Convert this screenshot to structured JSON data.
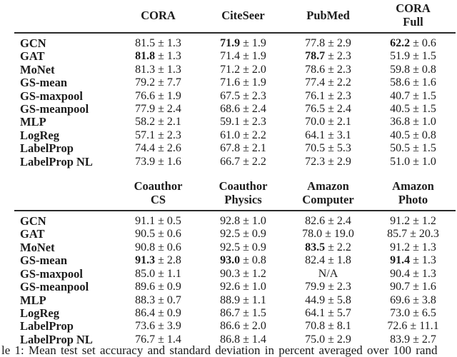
{
  "page": {
    "background": "#ffffff",
    "text_color": "#1c1c1c",
    "rule_color": "#2a2a2a"
  },
  "caption": {
    "text": "le 1:  Mean test set accuracy and standard deviation in percent averaged over 100 rand"
  },
  "sections": [
    {
      "headers": [
        "CORA",
        "CiteSeer",
        "PubMed",
        "CORA\nFull"
      ],
      "rows": [
        {
          "label": "GCN",
          "cells": [
            {
              "v": "81.5",
              "pm": "± 1.3",
              "b": false
            },
            {
              "v": "71.9",
              "pm": "± 1.9",
              "b": true
            },
            {
              "v": "77.8",
              "pm": "± 2.9",
              "b": false
            },
            {
              "v": "62.2",
              "pm": "± 0.6",
              "b": true
            }
          ]
        },
        {
          "label": "GAT",
          "cells": [
            {
              "v": "81.8",
              "pm": "± 1.3",
              "b": true
            },
            {
              "v": "71.4",
              "pm": "± 1.9",
              "b": false
            },
            {
              "v": "78.7",
              "pm": "± 2.3",
              "b": true
            },
            {
              "v": "51.9",
              "pm": "± 1.5",
              "b": false
            }
          ]
        },
        {
          "label": "MoNet",
          "cells": [
            {
              "v": "81.3",
              "pm": "± 1.3",
              "b": false
            },
            {
              "v": "71.2",
              "pm": "± 2.0",
              "b": false
            },
            {
              "v": "78.6",
              "pm": "± 2.3",
              "b": false
            },
            {
              "v": "59.8",
              "pm": "± 0.8",
              "b": false
            }
          ]
        },
        {
          "label": "GS-mean",
          "cells": [
            {
              "v": "79.2",
              "pm": "± 7.7",
              "b": false
            },
            {
              "v": "71.6",
              "pm": "± 1.9",
              "b": false
            },
            {
              "v": "77.4",
              "pm": "± 2.2",
              "b": false
            },
            {
              "v": "58.6",
              "pm": "± 1.6",
              "b": false
            }
          ]
        },
        {
          "label": "GS-maxpool",
          "cells": [
            {
              "v": "76.6",
              "pm": "± 1.9",
              "b": false
            },
            {
              "v": "67.5",
              "pm": "± 2.3",
              "b": false
            },
            {
              "v": "76.1",
              "pm": "± 2.3",
              "b": false
            },
            {
              "v": "40.7",
              "pm": "± 1.5",
              "b": false
            }
          ]
        },
        {
          "label": "GS-meanpool",
          "cells": [
            {
              "v": "77.9",
              "pm": "± 2.4",
              "b": false
            },
            {
              "v": "68.6",
              "pm": "± 2.4",
              "b": false
            },
            {
              "v": "76.5",
              "pm": "± 2.4",
              "b": false
            },
            {
              "v": "40.5",
              "pm": "± 1.5",
              "b": false
            }
          ]
        },
        {
          "label": "MLP",
          "cells": [
            {
              "v": "58.2",
              "pm": "± 2.1",
              "b": false
            },
            {
              "v": "59.1",
              "pm": "± 2.3",
              "b": false
            },
            {
              "v": "70.0",
              "pm": "± 2.1",
              "b": false
            },
            {
              "v": "36.8",
              "pm": "± 1.0",
              "b": false
            }
          ]
        },
        {
          "label": "LogReg",
          "cells": [
            {
              "v": "57.1",
              "pm": "± 2.3",
              "b": false
            },
            {
              "v": "61.0",
              "pm": "± 2.2",
              "b": false
            },
            {
              "v": "64.1",
              "pm": "± 3.1",
              "b": false
            },
            {
              "v": "40.5",
              "pm": "± 0.8",
              "b": false
            }
          ]
        },
        {
          "label": "LabelProp",
          "cells": [
            {
              "v": "74.4",
              "pm": "± 2.6",
              "b": false
            },
            {
              "v": "67.8",
              "pm": "± 2.1",
              "b": false
            },
            {
              "v": "70.5",
              "pm": "± 5.3",
              "b": false
            },
            {
              "v": "50.5",
              "pm": "± 1.5",
              "b": false
            }
          ]
        },
        {
          "label": "LabelProp NL",
          "cells": [
            {
              "v": "73.9",
              "pm": "± 1.6",
              "b": false
            },
            {
              "v": "66.7",
              "pm": "± 2.2",
              "b": false
            },
            {
              "v": "72.3",
              "pm": "± 2.9",
              "b": false
            },
            {
              "v": "51.0",
              "pm": "± 1.0",
              "b": false
            }
          ]
        }
      ]
    },
    {
      "headers": [
        "Coauthor\nCS",
        "Coauthor\nPhysics",
        "Amazon\nComputer",
        "Amazon\nPhoto"
      ],
      "rows": [
        {
          "label": "GCN",
          "cells": [
            {
              "v": "91.1",
              "pm": "± 0.5",
              "b": false
            },
            {
              "v": "92.8",
              "pm": "± 1.0",
              "b": false
            },
            {
              "v": "82.6",
              "pm": "± 2.4",
              "b": false
            },
            {
              "v": "91.2",
              "pm": "± 1.2",
              "b": false
            }
          ]
        },
        {
          "label": "GAT",
          "cells": [
            {
              "v": "90.5",
              "pm": "± 0.6",
              "b": false
            },
            {
              "v": "92.5",
              "pm": "± 0.9",
              "b": false
            },
            {
              "v": "78.0",
              "pm": "± 19.0",
              "b": false
            },
            {
              "v": "85.7",
              "pm": "± 20.3",
              "b": false
            }
          ]
        },
        {
          "label": "MoNet",
          "cells": [
            {
              "v": "90.8",
              "pm": "± 0.6",
              "b": false
            },
            {
              "v": "92.5",
              "pm": "± 0.9",
              "b": false
            },
            {
              "v": "83.5",
              "pm": "± 2.2",
              "b": true
            },
            {
              "v": "91.2",
              "pm": "± 1.3",
              "b": false
            }
          ]
        },
        {
          "label": "GS-mean",
          "cells": [
            {
              "v": "91.3",
              "pm": "± 2.8",
              "b": true
            },
            {
              "v": "93.0",
              "pm": "± 0.8",
              "b": true
            },
            {
              "v": "82.4",
              "pm": "± 1.8",
              "b": false
            },
            {
              "v": "91.4",
              "pm": "± 1.3",
              "b": true
            }
          ]
        },
        {
          "label": "GS-maxpool",
          "cells": [
            {
              "v": "85.0",
              "pm": "± 1.1",
              "b": false
            },
            {
              "v": "90.3",
              "pm": "± 1.2",
              "b": false
            },
            {
              "v": "N/A",
              "pm": "",
              "b": false
            },
            {
              "v": "90.4",
              "pm": "± 1.3",
              "b": false
            }
          ]
        },
        {
          "label": "GS-meanpool",
          "cells": [
            {
              "v": "89.6",
              "pm": "± 0.9",
              "b": false
            },
            {
              "v": "92.6",
              "pm": "± 1.0",
              "b": false
            },
            {
              "v": "79.9",
              "pm": "± 2.3",
              "b": false
            },
            {
              "v": "90.7",
              "pm": "± 1.6",
              "b": false
            }
          ]
        },
        {
          "label": "MLP",
          "cells": [
            {
              "v": "88.3",
              "pm": "± 0.7",
              "b": false
            },
            {
              "v": "88.9",
              "pm": "± 1.1",
              "b": false
            },
            {
              "v": "44.9",
              "pm": "± 5.8",
              "b": false
            },
            {
              "v": "69.6",
              "pm": "± 3.8",
              "b": false
            }
          ]
        },
        {
          "label": "LogReg",
          "cells": [
            {
              "v": "86.4",
              "pm": "± 0.9",
              "b": false
            },
            {
              "v": "86.7",
              "pm": "± 1.5",
              "b": false
            },
            {
              "v": "64.1",
              "pm": "± 5.7",
              "b": false
            },
            {
              "v": "73.0",
              "pm": "± 6.5",
              "b": false
            }
          ]
        },
        {
          "label": "LabelProp",
          "cells": [
            {
              "v": "73.6",
              "pm": "± 3.9",
              "b": false
            },
            {
              "v": "86.6",
              "pm": "± 2.0",
              "b": false
            },
            {
              "v": "70.8",
              "pm": "± 8.1",
              "b": false
            },
            {
              "v": "72.6",
              "pm": "± 11.1",
              "b": false
            }
          ]
        },
        {
          "label": "LabelProp NL",
          "cells": [
            {
              "v": "76.7",
              "pm": "± 1.4",
              "b": false
            },
            {
              "v": "86.8",
              "pm": "± 1.4",
              "b": false
            },
            {
              "v": "75.0",
              "pm": "± 2.9",
              "b": false
            },
            {
              "v": "83.9",
              "pm": "± 2.7",
              "b": false
            }
          ]
        }
      ]
    }
  ]
}
